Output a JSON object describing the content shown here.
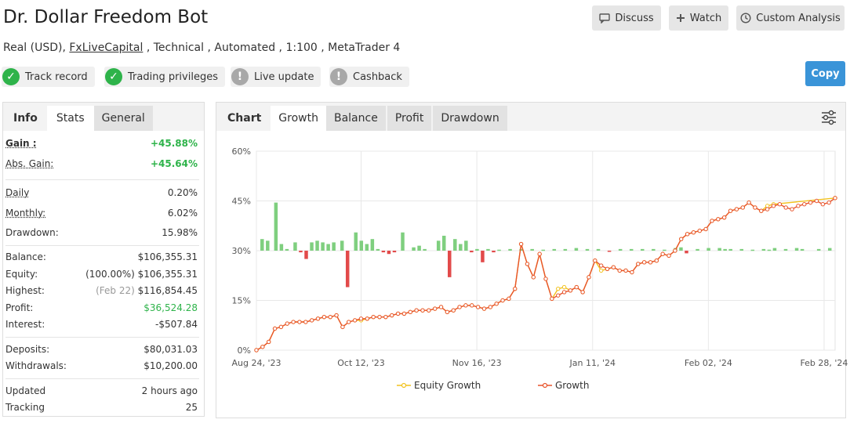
{
  "header": {
    "title": "Dr. Dollar Freedom Bot",
    "sub_prefix": "Real (USD), ",
    "broker": "FxLiveCapital",
    "sub_suffix": " , Technical , Automated , 1:100 , MetaTrader 4"
  },
  "actions": {
    "discuss": "Discuss",
    "watch": "Watch",
    "custom_analysis": "Custom Analysis",
    "copy": "Copy"
  },
  "badges": [
    {
      "label": "Track record",
      "status": "ok"
    },
    {
      "label": "Trading privileges",
      "status": "ok"
    },
    {
      "label": "Live update",
      "status": "warn"
    },
    {
      "label": "Cashback",
      "status": "warn"
    }
  ],
  "stats_tabs": {
    "info": "Info",
    "stats": "Stats",
    "general": "General"
  },
  "stats": {
    "gain_label": "Gain :",
    "gain": "+45.88%",
    "abs_gain_label": "Abs. Gain:",
    "abs_gain": "+45.64%",
    "daily_label": "Daily",
    "daily": "0.20%",
    "monthly_label": "Monthly:",
    "monthly": "6.02%",
    "drawdown_label": "Drawdown:",
    "drawdown": "15.98%",
    "balance_label": "Balance:",
    "balance": "$106,355.31",
    "equity_label": "Equity:",
    "equity_pct": "(100.00%)",
    "equity": "$106,355.31",
    "highest_label": "Highest:",
    "highest_date": "(Feb 22)",
    "highest": "$116,854.45",
    "profit_label": "Profit:",
    "profit": "$36,524.28",
    "interest_label": "Interest:",
    "interest": "-$507.84",
    "deposits_label": "Deposits:",
    "deposits": "$80,031.03",
    "withdrawals_label": "Withdrawals:",
    "withdrawals": "$10,200.00",
    "updated_label": "Updated",
    "updated": "2 hours ago",
    "tracking_label": "Tracking",
    "tracking": "25"
  },
  "chart_tabs": {
    "chart": "Chart",
    "growth": "Growth",
    "balance": "Balance",
    "profit": "Profit",
    "drawdown": "Drawdown"
  },
  "colors": {
    "growth": "#e8542c",
    "equity": "#f2c21e",
    "bar_pos": "#7fcf7f",
    "bar_neg": "#e24a4a",
    "accent": "#3a94d8",
    "ok": "#2eb34a"
  },
  "chart_data": {
    "type": "line",
    "y_ticks": [
      "60%",
      "45%",
      "30%",
      "15%",
      "0%"
    ],
    "ylim": [
      0,
      60
    ],
    "x_tick_labels": [
      "Aug 24, '23",
      "Oct 12, '23",
      "Nov 16, '23",
      "Jan 11, '24",
      "Feb 02, '24",
      "Feb 28, '24"
    ],
    "x_tick_positions": [
      0,
      19,
      40,
      61,
      82,
      103
    ],
    "x_max": 105,
    "legend": [
      {
        "name": "Equity Growth"
      },
      {
        "name": "Growth"
      }
    ],
    "series": [
      {
        "name": "Growth",
        "values": [
          0,
          1,
          2.5,
          6.5,
          7,
          8,
          8.5,
          8.5,
          8.5,
          9,
          9.5,
          10,
          10,
          10.5,
          7,
          8.5,
          9,
          9.5,
          9.5,
          10,
          10,
          10,
          10.5,
          11,
          11,
          11.5,
          12,
          12,
          12,
          12.5,
          13,
          11.5,
          12,
          13,
          13.5,
          13.5,
          13,
          12.5,
          13,
          14,
          15,
          15.5,
          18.5,
          32,
          26,
          22,
          29,
          21.5,
          15.5,
          16.5,
          17.5,
          18,
          19,
          17.5,
          22,
          27,
          25.5,
          24.5,
          25,
          24,
          24,
          23.5,
          26,
          26.5,
          26.5,
          27,
          29,
          28.5,
          30,
          33.5,
          35,
          35.5,
          36,
          36.5,
          39,
          39.5,
          40,
          42,
          42.5,
          43,
          44.5,
          43,
          42,
          42.5,
          43.5,
          44,
          43,
          42.5,
          43.5,
          44,
          44.5,
          45,
          44,
          44.5,
          45.88
        ],
        "x": [
          0,
          1,
          2,
          3,
          4,
          5,
          6,
          7,
          8,
          9,
          10,
          11,
          12,
          13,
          14,
          15,
          16,
          17,
          18,
          19,
          20,
          21,
          22,
          23,
          24,
          25,
          26,
          27,
          28,
          29,
          30,
          31,
          32,
          33,
          34,
          35,
          36,
          37,
          38,
          39,
          40,
          41,
          42,
          43,
          44,
          45,
          46,
          47,
          48,
          49,
          50,
          51,
          52,
          53,
          54,
          55,
          56,
          57,
          58,
          59,
          60,
          61,
          62,
          63,
          64,
          65,
          66,
          67,
          68,
          69,
          70,
          71,
          72,
          73,
          74,
          75,
          76,
          77,
          78,
          79,
          80,
          81,
          82,
          83,
          84,
          85,
          86,
          87,
          88,
          89,
          90,
          91,
          92,
          93,
          94
        ]
      },
      {
        "name": "Equity Growth",
        "values": [
          0,
          1,
          2.5,
          6.5,
          7,
          8,
          8.5,
          8.5,
          8.5,
          9,
          9.5,
          10,
          10,
          10.5,
          7,
          8.5,
          9,
          9,
          9.5,
          10,
          10,
          10,
          10.5,
          11,
          11,
          11.5,
          12,
          12,
          12,
          12.5,
          13,
          11.5,
          12,
          13,
          13.5,
          13.5,
          13,
          12.5,
          13,
          14,
          15,
          15.5,
          18.5,
          32,
          26,
          22,
          29,
          21.5,
          15.5,
          18.5,
          19,
          18,
          19,
          17.5,
          22,
          27,
          24,
          24.5,
          25,
          24,
          24,
          23.5,
          26,
          26.5,
          26.5,
          27,
          29,
          28.5,
          30,
          33.5,
          35,
          35.5,
          36,
          36.5,
          39,
          39.5,
          40,
          42,
          42.5,
          43,
          44.5,
          43,
          42,
          43.5,
          44,
          45.88
        ],
        "x": [
          0,
          1,
          2,
          3,
          4,
          5,
          6,
          7,
          8,
          9,
          10,
          11,
          12,
          13,
          14,
          15,
          16,
          17,
          18,
          19,
          20,
          21,
          22,
          23,
          24,
          25,
          26,
          27,
          28,
          29,
          30,
          31,
          32,
          33,
          34,
          35,
          36,
          37,
          38,
          39,
          40,
          41,
          42,
          43,
          44,
          45,
          46,
          47,
          48,
          49,
          50,
          51,
          52,
          53,
          54,
          55,
          56,
          57,
          58,
          59,
          60,
          61,
          62,
          63,
          64,
          65,
          66,
          67,
          68,
          69,
          70,
          71,
          72,
          73,
          74,
          75,
          76,
          77,
          78,
          79,
          80,
          81,
          82,
          83,
          84,
          94
        ]
      }
    ],
    "bars": [
      {
        "x": 1,
        "v": 3.5
      },
      {
        "x": 2,
        "v": 3
      },
      {
        "x": 3.5,
        "v": 14.5
      },
      {
        "x": 4.5,
        "v": 2
      },
      {
        "x": 5.5,
        "v": 0.5
      },
      {
        "x": 7,
        "v": 2.5
      },
      {
        "x": 8,
        "v": -0.5
      },
      {
        "x": 9,
        "v": -2.5
      },
      {
        "x": 10,
        "v": 2.5
      },
      {
        "x": 11,
        "v": 3
      },
      {
        "x": 12,
        "v": 2.5
      },
      {
        "x": 13,
        "v": 2
      },
      {
        "x": 14,
        "v": 2.5
      },
      {
        "x": 15.5,
        "v": 3
      },
      {
        "x": 16.5,
        "v": -11
      },
      {
        "x": 18,
        "v": 5.5
      },
      {
        "x": 19,
        "v": 3
      },
      {
        "x": 20,
        "v": 2
      },
      {
        "x": 21,
        "v": 3.5
      },
      {
        "x": 22,
        "v": 0.5
      },
      {
        "x": 23,
        "v": -0.5
      },
      {
        "x": 24,
        "v": -1
      },
      {
        "x": 25,
        "v": -0.5
      },
      {
        "x": 26.5,
        "v": 5.5
      },
      {
        "x": 28.5,
        "v": 1
      },
      {
        "x": 29.5,
        "v": 1.5
      },
      {
        "x": 30.5,
        "v": 0.5
      },
      {
        "x": 33,
        "v": 3
      },
      {
        "x": 34,
        "v": 4.5
      },
      {
        "x": 35,
        "v": -8
      },
      {
        "x": 36,
        "v": 3.5
      },
      {
        "x": 37,
        "v": 2
      },
      {
        "x": 38,
        "v": 3
      },
      {
        "x": 39,
        "v": -0.5
      },
      {
        "x": 40,
        "v": 0.5
      },
      {
        "x": 41,
        "v": -3.5
      },
      {
        "x": 42,
        "v": 0.5
      },
      {
        "x": 43,
        "v": -0.5
      },
      {
        "x": 44,
        "v": 0.3
      },
      {
        "x": 46,
        "v": 0.5
      },
      {
        "x": 48,
        "v": 0.5
      },
      {
        "x": 50,
        "v": 0.5
      },
      {
        "x": 52,
        "v": 0.3
      },
      {
        "x": 54,
        "v": 0.5
      },
      {
        "x": 56,
        "v": 0.5
      },
      {
        "x": 58,
        "v": 0.8
      },
      {
        "x": 60,
        "v": 0.5
      },
      {
        "x": 62,
        "v": 0.5
      },
      {
        "x": 64,
        "v": -0.3
      },
      {
        "x": 66,
        "v": 0.5
      },
      {
        "x": 68,
        "v": 0.5
      },
      {
        "x": 70,
        "v": 0.5
      },
      {
        "x": 72,
        "v": 0.5
      },
      {
        "x": 74,
        "v": 0.3
      },
      {
        "x": 76,
        "v": 0.8
      },
      {
        "x": 77,
        "v": 1
      },
      {
        "x": 78,
        "v": -0.8
      },
      {
        "x": 80,
        "v": 0.5
      },
      {
        "x": 82,
        "v": 0.8
      },
      {
        "x": 84,
        "v": 0.8
      },
      {
        "x": 85,
        "v": 0.5
      },
      {
        "x": 86,
        "v": 0.5
      },
      {
        "x": 88,
        "v": 0.5
      },
      {
        "x": 90,
        "v": 0.3
      },
      {
        "x": 92,
        "v": 0.5
      },
      {
        "x": 93,
        "v": 0.3
      },
      {
        "x": 94,
        "v": 0.8
      },
      {
        "x": 96,
        "v": 0.5
      },
      {
        "x": 98,
        "v": 0.8
      },
      {
        "x": 99,
        "v": 0.5
      },
      {
        "x": 102,
        "v": 0.5
      },
      {
        "x": 104,
        "v": 0.8
      }
    ]
  }
}
